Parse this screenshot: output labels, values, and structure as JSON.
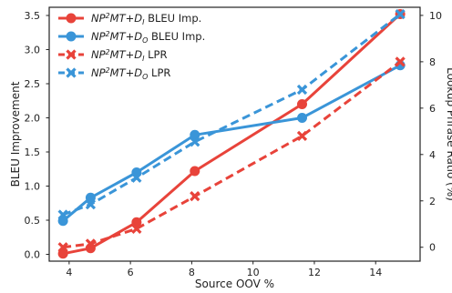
{
  "chart_data": {
    "type": "line",
    "xlabel": "Source OOV %",
    "ylabel_left": "BLEU Improvement",
    "ylabel_right": "Lookup Phrase Ratio (%)",
    "x_ticks": [
      4,
      6,
      8,
      10,
      12,
      14
    ],
    "y_left_ticks": [
      "0.0",
      "0.5",
      "1.0",
      "1.5",
      "2.0",
      "2.5",
      "3.0",
      "3.5"
    ],
    "y_right_ticks": [
      "0",
      "2",
      "4",
      "6",
      "8",
      "10"
    ],
    "xlim": [
      3.35,
      15.45
    ],
    "ylim_left": [
      -0.1,
      3.62
    ],
    "ylim_right": [
      -0.6,
      10.35
    ],
    "grid": false,
    "legend_position": "upper-left",
    "series": [
      {
        "name": "NP²MT+D_I BLEU Imp.",
        "legend": {
          "prefix": "NP",
          "sup": "2",
          "mid": "MT+D",
          "sub": "I",
          "suffix": " BLEU Imp."
        },
        "axis": "left",
        "color": "#e8433a",
        "dash": false,
        "marker": "circle",
        "x": [
          3.8,
          4.7,
          6.2,
          8.1,
          11.6,
          14.8
        ],
        "y": [
          0.01,
          0.09,
          0.47,
          1.22,
          2.2,
          3.52
        ]
      },
      {
        "name": "NP²MT+D_O BLEU Imp.",
        "legend": {
          "prefix": "NP",
          "sup": "2",
          "mid": "MT+D",
          "sub": "O",
          "suffix": " BLEU Imp."
        },
        "axis": "left",
        "color": "#3a95d8",
        "dash": false,
        "marker": "circle",
        "x": [
          3.8,
          4.7,
          6.2,
          8.1,
          11.6,
          14.8
        ],
        "y": [
          0.49,
          0.83,
          1.2,
          1.75,
          2.0,
          2.77
        ]
      },
      {
        "name": "NP²MT+D_I LPR",
        "legend": {
          "prefix": "NP",
          "sup": "2",
          "mid": "MT+D",
          "sub": "I",
          "suffix": " LPR"
        },
        "axis": "right",
        "color": "#e8433a",
        "dash": true,
        "marker": "x",
        "x": [
          3.8,
          4.7,
          6.2,
          8.1,
          11.6,
          14.8
        ],
        "y": [
          0.0,
          0.15,
          0.8,
          2.2,
          4.8,
          8.0
        ]
      },
      {
        "name": "NP²MT+D_O LPR",
        "legend": {
          "prefix": "NP",
          "sup": "2",
          "mid": "MT+D",
          "sub": "O",
          "suffix": " LPR"
        },
        "axis": "right",
        "color": "#3a95d8",
        "dash": true,
        "marker": "x",
        "x": [
          3.8,
          4.7,
          6.2,
          8.1,
          11.6,
          14.8
        ],
        "y": [
          1.4,
          1.85,
          3.0,
          4.55,
          6.8,
          10.05
        ]
      }
    ]
  }
}
